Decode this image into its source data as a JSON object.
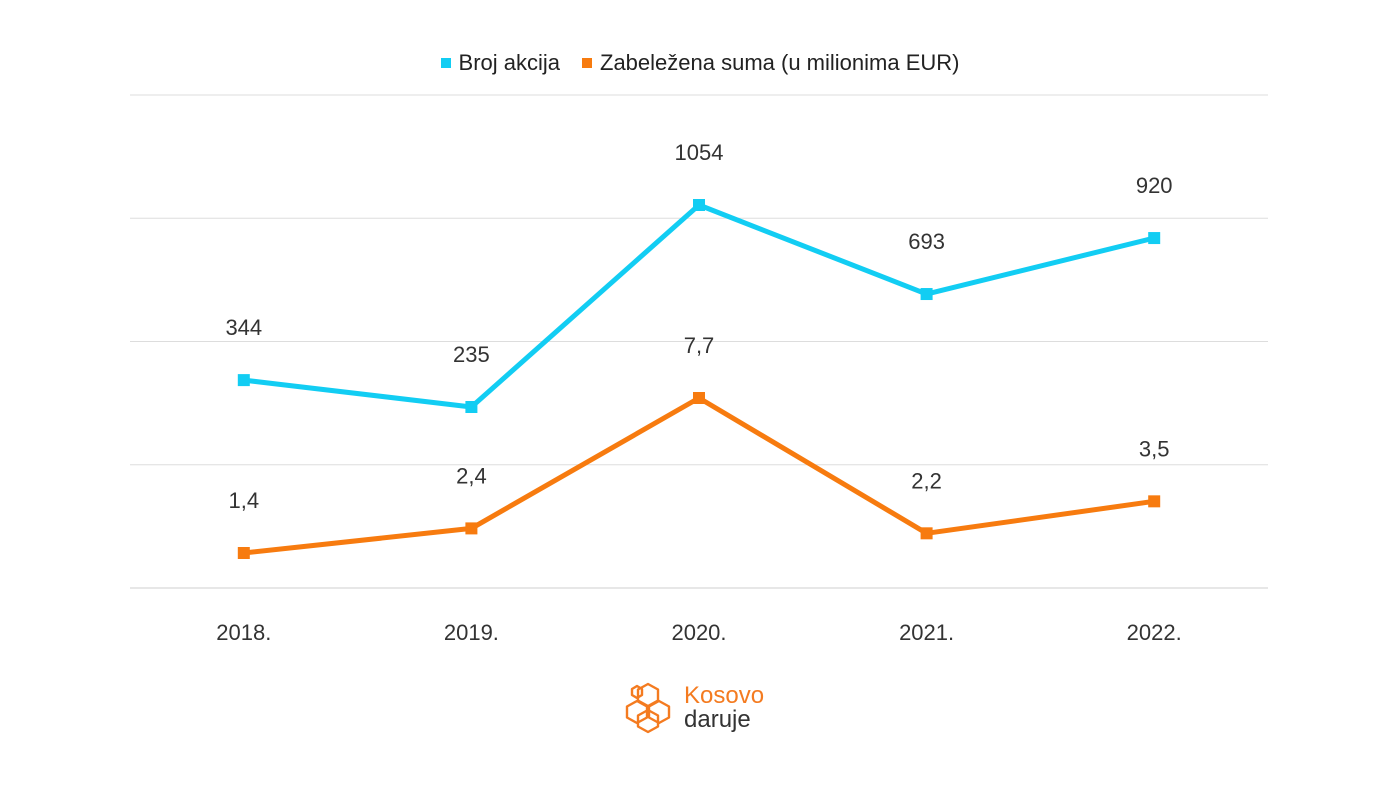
{
  "chart_data": {
    "type": "line",
    "categories": [
      "2018.",
      "2019.",
      "2020.",
      "2021.",
      "2022."
    ],
    "series": [
      {
        "name": "Broj akcija",
        "color": "#12cdf3",
        "values": [
          344,
          235,
          1054,
          693,
          920
        ],
        "labels": [
          "344",
          "235",
          "1054",
          "693",
          "920"
        ]
      },
      {
        "name": "Zabeležena suma (u milionima EUR)",
        "color": "#f77b0f",
        "values": [
          1.4,
          2.4,
          7.7,
          2.2,
          3.5
        ],
        "labels": [
          "1,4",
          "2,4",
          "7,7",
          "2,2",
          "3,5"
        ]
      }
    ],
    "grid": true,
    "legend": "top-center"
  },
  "logo": {
    "line1": "Kosovo",
    "line2": "daruje",
    "icon": "hexagon-cluster-icon"
  }
}
